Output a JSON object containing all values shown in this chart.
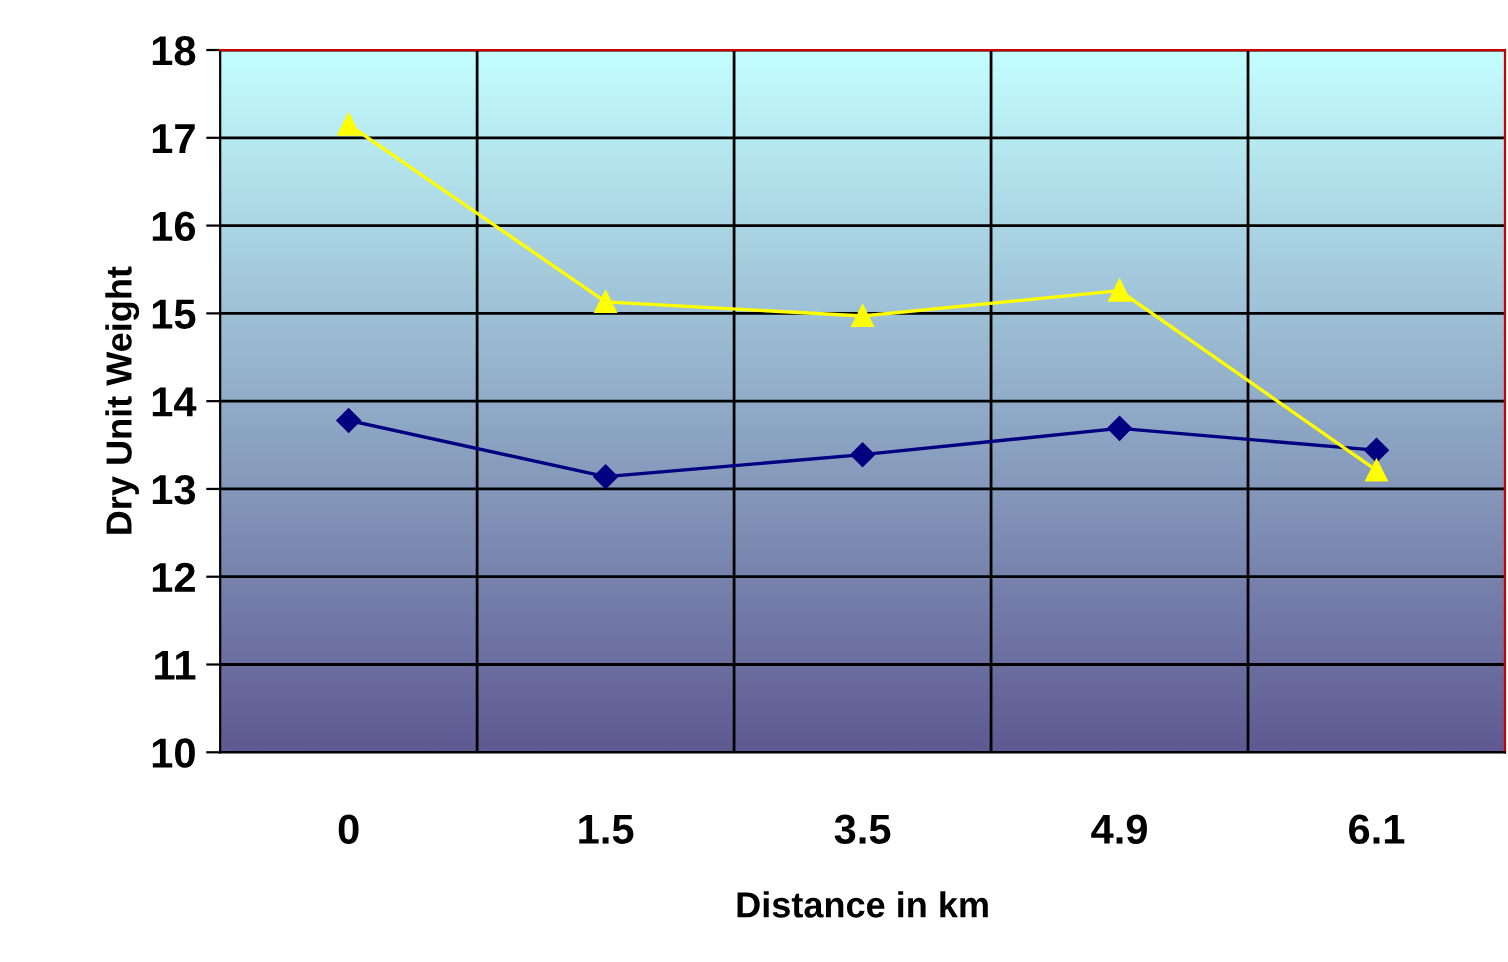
{
  "chart_data": {
    "type": "line",
    "xlabel": "Distance in km",
    "ylabel": "Dry Unit Weight",
    "categories": [
      "0",
      "1.5",
      "3.5",
      "4.9",
      "6.1"
    ],
    "series": [
      {
        "color": "#000080",
        "values": [
          13.78,
          13.14,
          13.39,
          13.69,
          13.44
        ],
        "marker": "diamond"
      },
      {
        "color": "#ffff00",
        "values": [
          17.15,
          15.13,
          14.97,
          15.26,
          13.21
        ],
        "marker": "triangle"
      }
    ],
    "ylim": [
      10,
      18
    ],
    "yticks": [
      10,
      11,
      12,
      13,
      14,
      15,
      16,
      17,
      18
    ],
    "grid": true,
    "line_style": "solid"
  }
}
